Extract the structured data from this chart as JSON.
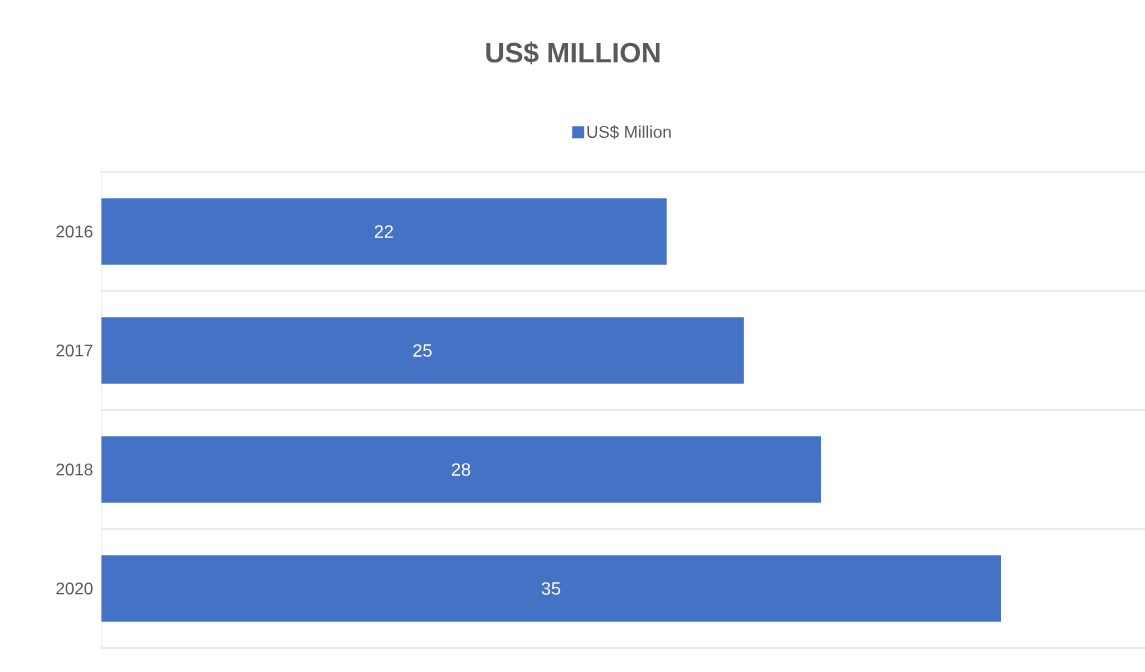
{
  "chart_data": {
    "type": "bar",
    "orientation": "horizontal",
    "title": "US$ MILLION",
    "categories": [
      "2016",
      "2017",
      "2018",
      "2020"
    ],
    "series": [
      {
        "name": "US$ Million",
        "color": "#4472c4",
        "values": [
          22,
          25,
          28,
          35
        ]
      }
    ],
    "data_labels": true,
    "legend": "top",
    "grid": "y"
  }
}
